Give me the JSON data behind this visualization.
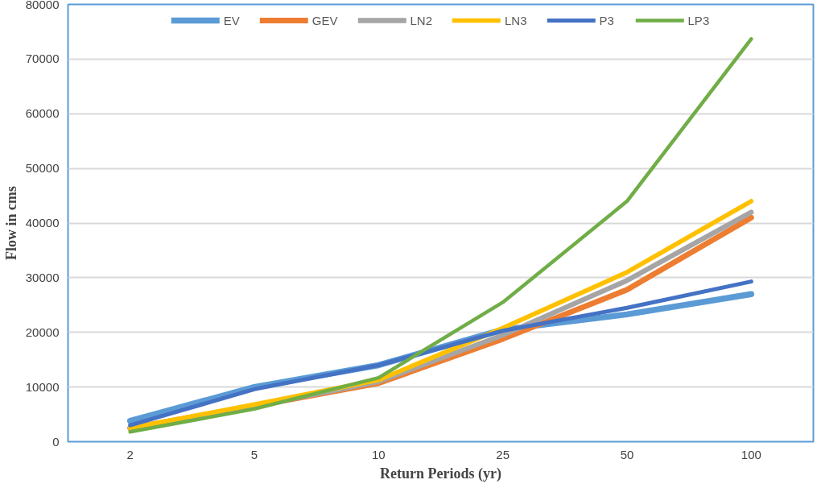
{
  "chart_data": {
    "type": "line",
    "xlabel": "Return Periods (yr)",
    "ylabel": "Flow in cms",
    "categories": [
      "2",
      "5",
      "10",
      "25",
      "50",
      "100"
    ],
    "series": [
      {
        "name": "EV",
        "color": "#5b9bd5",
        "values": [
          3800,
          10000,
          14000,
          20500,
          23300,
          27000
        ]
      },
      {
        "name": "GEV",
        "color": "#ed7d31",
        "values": [
          2500,
          6500,
          10700,
          18800,
          27800,
          41000
        ]
      },
      {
        "name": "LN2",
        "color": "#a5a5a5",
        "values": [
          2500,
          6500,
          11000,
          19500,
          29500,
          42000
        ]
      },
      {
        "name": "LN3",
        "color": "#ffc000",
        "values": [
          2500,
          6800,
          11300,
          20800,
          31000,
          44000
        ]
      },
      {
        "name": "P3",
        "color": "#4472c4",
        "values": [
          3000,
          9600,
          14000,
          20300,
          24500,
          29300
        ]
      },
      {
        "name": "LP3",
        "color": "#70ad47",
        "values": [
          1800,
          6000,
          11700,
          25500,
          44000,
          73700
        ]
      }
    ],
    "ylim": [
      0,
      80000
    ],
    "yticks": [
      0,
      10000,
      20000,
      30000,
      40000,
      50000,
      60000,
      70000,
      80000
    ],
    "grid": "y",
    "legend": "top",
    "marker": "none",
    "line_style": "solid"
  }
}
